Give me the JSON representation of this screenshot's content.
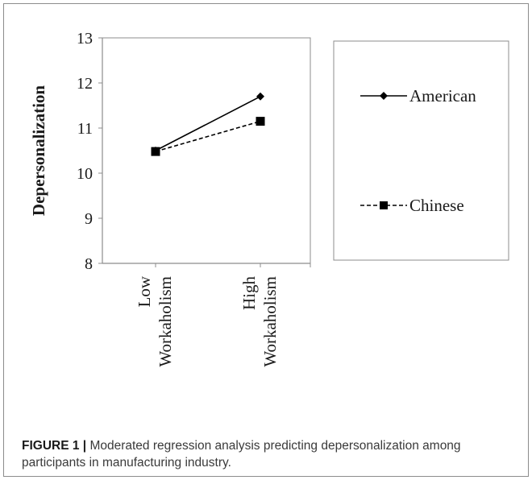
{
  "chart_data": {
    "type": "line",
    "title": "",
    "ylabel": "Depersonalization",
    "xlabel": "",
    "categories": [
      {
        "lines": [
          "Low",
          "Workaholism"
        ]
      },
      {
        "lines": [
          "High",
          "Workaholism"
        ]
      }
    ],
    "ylim": [
      8,
      13
    ],
    "yticks": [
      "8",
      "9",
      "10",
      "11",
      "12",
      "13"
    ],
    "grid": false,
    "legend_position": "right",
    "series": [
      {
        "name": "American",
        "values": [
          10.5,
          11.7
        ],
        "line_style": "solid",
        "marker": "diamond",
        "color": "#000000"
      },
      {
        "name": "Chinese",
        "values": [
          10.48,
          11.15
        ],
        "line_style": "dashed",
        "marker": "square",
        "color": "#000000"
      }
    ]
  },
  "caption": {
    "label": "FIGURE 1 |",
    "text": " Moderated regression analysis predicting depersonalization among participants in manufacturing industry."
  }
}
